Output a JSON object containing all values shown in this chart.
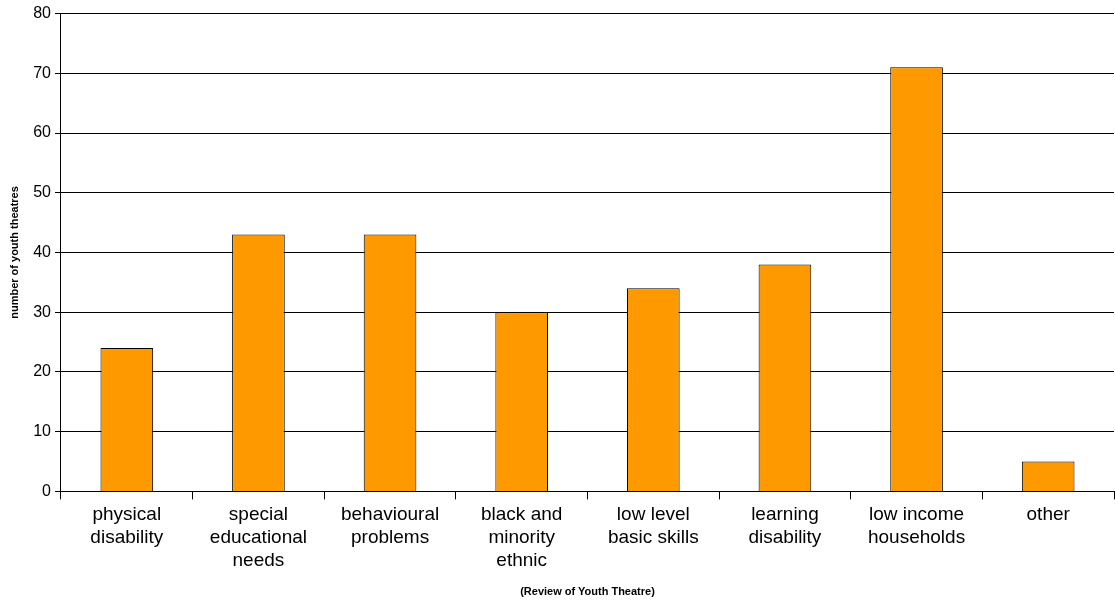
{
  "chart_data": {
    "type": "bar",
    "xlabel": "(Review of Youth Theatre)",
    "ylabel": "number of youth theatres",
    "categories": [
      "physical disability",
      "special educational needs",
      "behavioural problems",
      "black and minority ethnic",
      "low level basic skills",
      "learning disability",
      "low income households",
      "other"
    ],
    "values": [
      24,
      43,
      43,
      30,
      34,
      38,
      71,
      5
    ],
    "color": "#ff9900",
    "ylim": [
      0,
      80
    ],
    "yticks": [
      0,
      10,
      20,
      30,
      40,
      50,
      60,
      70,
      80
    ],
    "grid": "y",
    "legend": false
  }
}
